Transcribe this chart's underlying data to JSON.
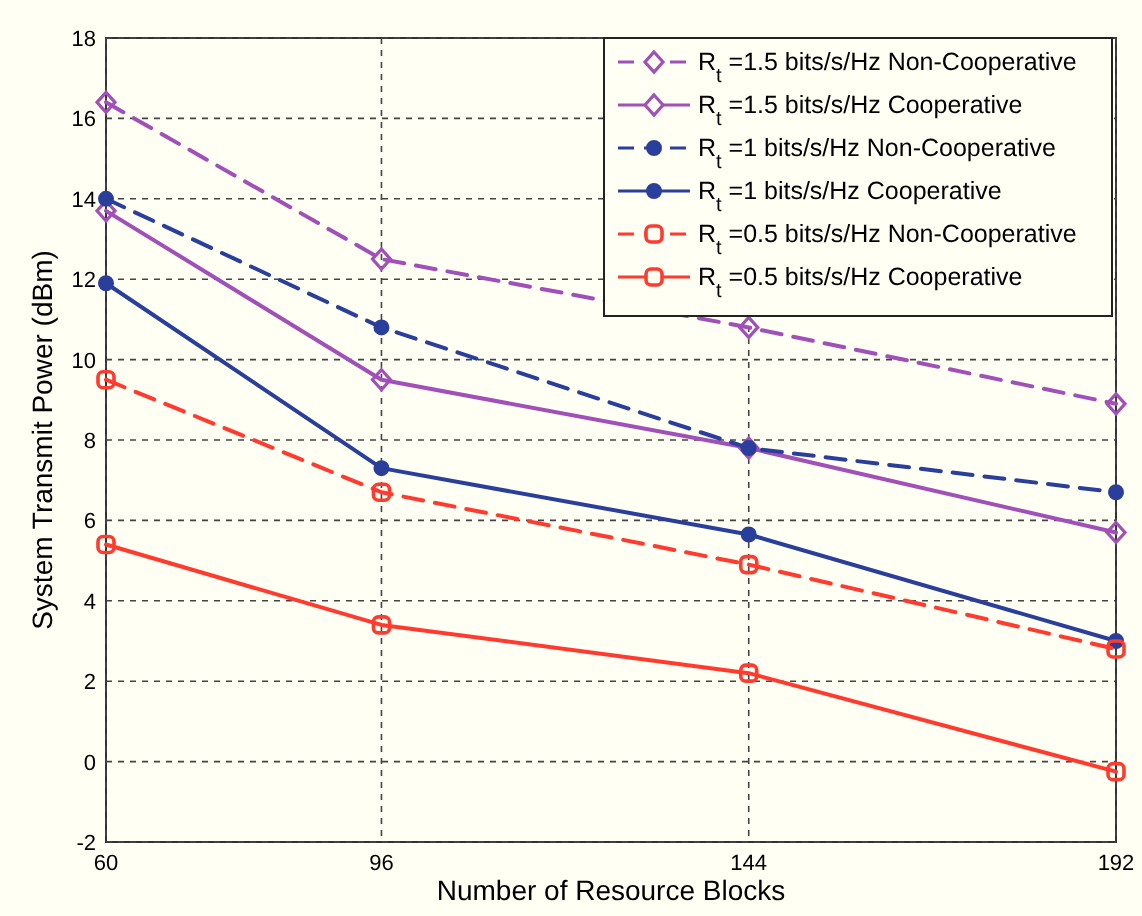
{
  "chart_data": {
    "type": "line",
    "xlabel": "Number of Resource Blocks",
    "ylabel": "System Transmit Power (dBm)",
    "x": [
      60,
      96,
      144,
      192
    ],
    "xlim": [
      60,
      192
    ],
    "xticks": [
      60,
      96,
      144,
      192
    ],
    "ylim": [
      -2,
      18
    ],
    "yticks": [
      -2,
      0,
      2,
      4,
      6,
      8,
      10,
      12,
      14,
      16,
      18
    ],
    "grid": true,
    "legend": "top right",
    "series": [
      {
        "name": "R$_{t}$ =1.5 bits/s/Hz Non-Cooperative",
        "color": "#a050b8",
        "marker": "diamond",
        "line_style": "dashed",
        "values": [
          16.4,
          12.5,
          10.8,
          8.9
        ]
      },
      {
        "name": "R$_{t}$ =1.5 bits/s/Hz Cooperative",
        "color": "#a050b8",
        "marker": "diamond",
        "line_style": "solid",
        "values": [
          13.7,
          9.5,
          7.8,
          5.7
        ]
      },
      {
        "name": "R$_{t}$ =1 bits/s/Hz Non-Cooperative",
        "color": "#2a3f9c",
        "marker": "circle",
        "line_style": "dashed",
        "values": [
          14.0,
          10.8,
          7.8,
          6.7
        ]
      },
      {
        "name": "R$_{t}$ =1 bits/s/Hz Cooperative",
        "color": "#2a3f9c",
        "marker": "circle",
        "line_style": "solid",
        "values": [
          11.9,
          7.3,
          5.65,
          3.0
        ]
      },
      {
        "name": "R$_{t}$ =0.5 bits/s/Hz Non-Cooperative",
        "color": "#ff3b2f",
        "marker": "square",
        "line_style": "dashed",
        "values": [
          9.5,
          6.7,
          4.9,
          2.8
        ]
      },
      {
        "name": "R$_{t}$ =0.5 bits/s/Hz Cooperative",
        "color": "#ff3b2f",
        "marker": "square",
        "line_style": "solid",
        "values": [
          5.4,
          3.4,
          2.2,
          -0.25
        ]
      }
    ]
  }
}
